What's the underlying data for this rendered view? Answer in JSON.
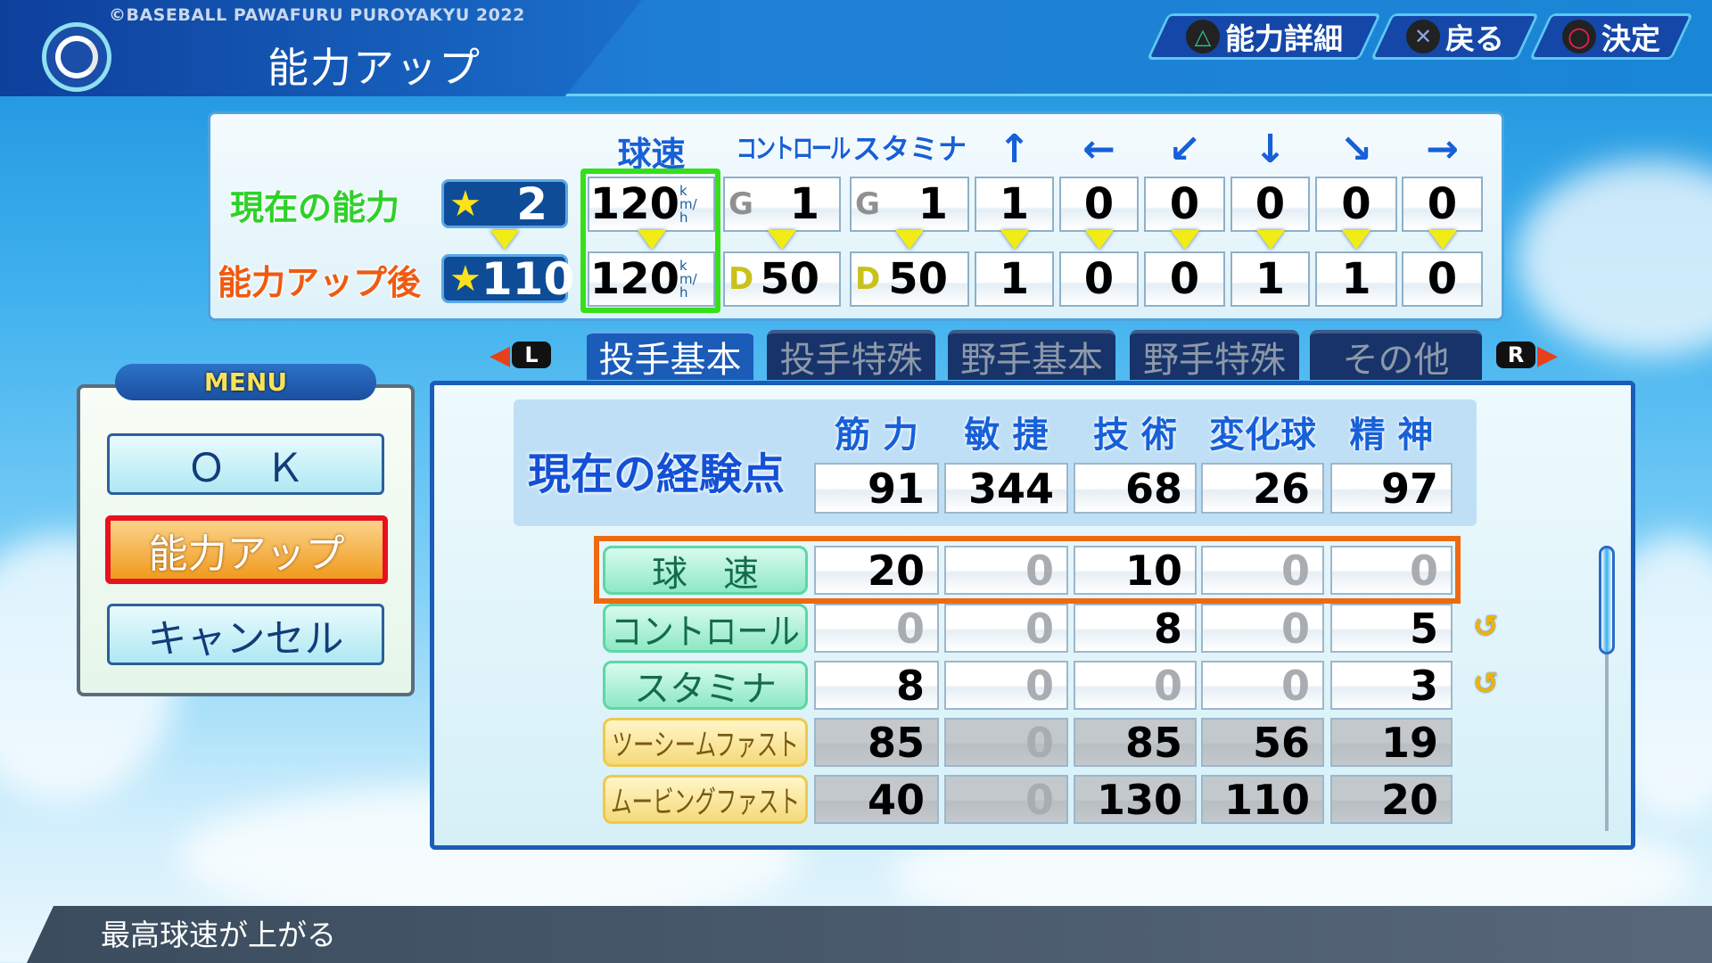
{
  "header": {
    "copyright": "©BASEBALL PAWAFURU PUROYAKYU 2022",
    "title": "能力アップ",
    "buttons": [
      {
        "icon": "triangle-icon",
        "glyph": "△",
        "label": "能力詳細",
        "color": "#2fc39a"
      },
      {
        "icon": "cross-icon",
        "glyph": "✕",
        "label": "戻る",
        "color": "#8ea6e0"
      },
      {
        "icon": "circle-icon",
        "glyph": "○",
        "label": "決定",
        "color": "#e8244a"
      }
    ]
  },
  "ability": {
    "columns": [
      "球速",
      "コントロール",
      "スタミナ",
      "↑",
      "←",
      "↙",
      "↓",
      "↘",
      "→"
    ],
    "current": {
      "label": "現在の能力",
      "stars": "2",
      "speed": "120",
      "speed_unit": "km/h",
      "control_grade": "G",
      "control": "1",
      "stamina_grade": "G",
      "stamina": "1",
      "others": [
        "1",
        "0",
        "0",
        "0",
        "0",
        "0"
      ]
    },
    "after": {
      "label": "能力アップ後",
      "stars": "110",
      "speed": "120",
      "speed_unit": "km/h",
      "control_grade": "D",
      "control": "50",
      "stamina_grade": "D",
      "stamina": "50",
      "others": [
        "1",
        "0",
        "0",
        "1",
        "1",
        "0"
      ]
    }
  },
  "tabs": {
    "left_key": "L",
    "right_key": "R",
    "items": [
      "投手基本",
      "投手特殊",
      "野手基本",
      "野手特殊",
      "その他"
    ],
    "active": 0
  },
  "menu": {
    "title": "MENU",
    "items": [
      "Ｏ　Ｋ",
      "能力アップ",
      "キャンセル"
    ],
    "selected": 1
  },
  "experience": {
    "label": "現在の経験点",
    "headers": [
      "筋 力",
      "敏 捷",
      "技 術",
      "変化球",
      "精 神"
    ],
    "values": [
      "91",
      "344",
      "68",
      "26",
      "97"
    ]
  },
  "costs": [
    {
      "label": "球　速",
      "values": [
        "20",
        "0",
        "10",
        "0",
        "0"
      ],
      "type": "green",
      "selected": true,
      "undo": false
    },
    {
      "label": "コントロール",
      "values": [
        "0",
        "0",
        "8",
        "0",
        "5"
      ],
      "type": "green",
      "undo": true
    },
    {
      "label": "スタミナ",
      "values": [
        "8",
        "0",
        "0",
        "0",
        "3"
      ],
      "type": "green",
      "undo": true
    },
    {
      "label": "ツーシームファスト",
      "values": [
        "85",
        "0",
        "85",
        "56",
        "19"
      ],
      "type": "yellow",
      "undo": false
    },
    {
      "label": "ムービングファスト",
      "values": [
        "40",
        "0",
        "130",
        "110",
        "20"
      ],
      "type": "yellow",
      "undo": false
    }
  ],
  "status": {
    "description": "最高球速が上がる"
  },
  "colors": {
    "selection_green": "#35e01a",
    "selection_orange": "#ee6a10",
    "menu_selected_red": "#e8121e"
  }
}
